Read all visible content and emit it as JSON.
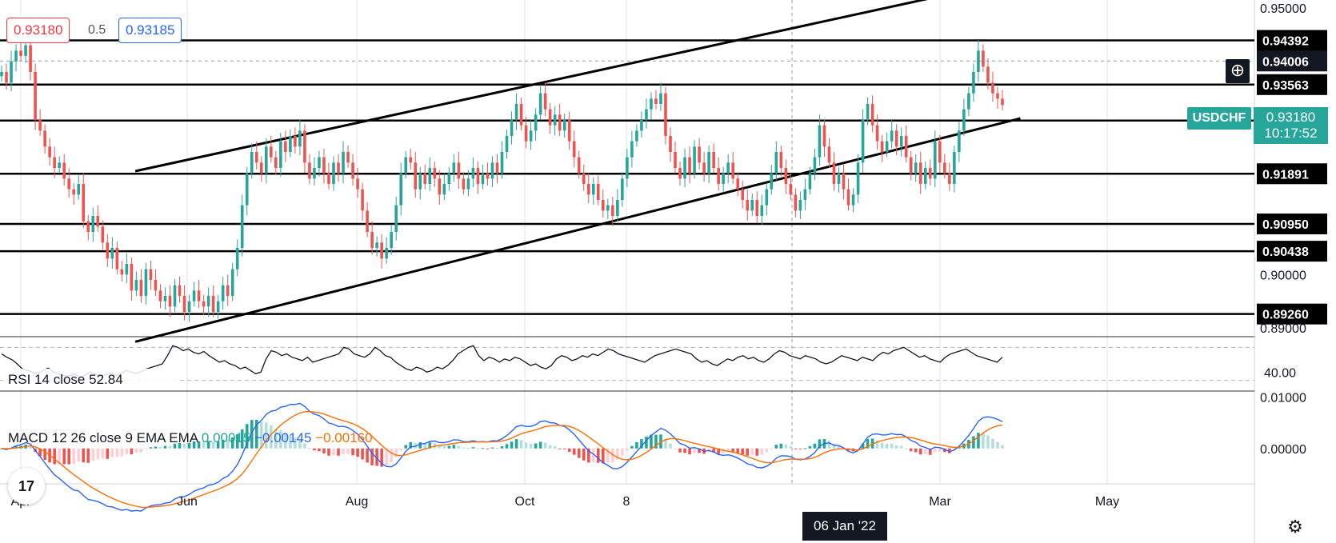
{
  "header": {
    "sell_price": "0.93180",
    "spread": "0.5",
    "buy_price": "0.93185"
  },
  "chart_data": {
    "type": "candlestick",
    "symbol": "USDCHF",
    "price_axis": {
      "ticks": [
        "0.95000",
        "0.90000",
        "0.89000"
      ],
      "range": [
        0.8885,
        0.9515
      ],
      "last_price": "0.93180",
      "countdown": "10:17:52",
      "crosshair_price": "0.94006"
    },
    "horizontal_levels": [
      "0.94392",
      "0.93563",
      "0.92889",
      "0.91891",
      "0.90950",
      "0.90438",
      "0.89260"
    ],
    "time_axis": {
      "labels": [
        "Apr",
        "Jun",
        "Aug",
        "Oct",
        "8",
        "Mar",
        "May"
      ],
      "crosshair_date": "06 Jan '22"
    },
    "trend_channel": {
      "upper": {
        "from": [
          "2021-05-12",
          0.9194
        ],
        "to": [
          "2022-03-25",
          0.9555
        ]
      },
      "lower": {
        "from": [
          "2021-05-12",
          0.8874
        ],
        "to": [
          "2022-03-25",
          0.9293
        ]
      }
    },
    "candles_close": [
      0.938,
      0.936,
      0.94,
      0.942,
      0.941,
      0.943,
      0.938,
      0.929,
      0.927,
      0.924,
      0.922,
      0.92,
      0.921,
      0.918,
      0.916,
      0.915,
      0.917,
      0.91,
      0.908,
      0.911,
      0.909,
      0.906,
      0.903,
      0.905,
      0.901,
      0.9,
      0.902,
      0.897,
      0.899,
      0.896,
      0.901,
      0.899,
      0.897,
      0.895,
      0.896,
      0.894,
      0.898,
      0.896,
      0.893,
      0.895,
      0.897,
      0.895,
      0.894,
      0.896,
      0.893,
      0.895,
      0.898,
      0.896,
      0.901,
      0.905,
      0.913,
      0.919,
      0.923,
      0.921,
      0.919,
      0.924,
      0.922,
      0.92,
      0.925,
      0.923,
      0.926,
      0.924,
      0.927,
      0.921,
      0.918,
      0.92,
      0.922,
      0.919,
      0.917,
      0.921,
      0.919,
      0.923,
      0.921,
      0.918,
      0.916,
      0.912,
      0.908,
      0.905,
      0.906,
      0.903,
      0.905,
      0.908,
      0.913,
      0.919,
      0.922,
      0.921,
      0.916,
      0.919,
      0.917,
      0.92,
      0.918,
      0.915,
      0.917,
      0.919,
      0.921,
      0.918,
      0.916,
      0.918,
      0.92,
      0.917,
      0.919,
      0.918,
      0.921,
      0.919,
      0.923,
      0.926,
      0.929,
      0.932,
      0.928,
      0.925,
      0.927,
      0.93,
      0.934,
      0.931,
      0.928,
      0.93,
      0.927,
      0.929,
      0.925,
      0.922,
      0.919,
      0.917,
      0.915,
      0.917,
      0.914,
      0.912,
      0.913,
      0.911,
      0.914,
      0.918,
      0.922,
      0.925,
      0.927,
      0.929,
      0.931,
      0.933,
      0.932,
      0.934,
      0.926,
      0.923,
      0.92,
      0.918,
      0.922,
      0.919,
      0.924,
      0.921,
      0.919,
      0.923,
      0.92,
      0.917,
      0.919,
      0.921,
      0.918,
      0.916,
      0.914,
      0.912,
      0.914,
      0.911,
      0.913,
      0.916,
      0.919,
      0.923,
      0.92,
      0.917,
      0.915,
      0.912,
      0.914,
      0.916,
      0.919,
      0.922,
      0.928,
      0.924,
      0.921,
      0.917,
      0.919,
      0.916,
      0.913,
      0.915,
      0.921,
      0.929,
      0.932,
      0.928,
      0.925,
      0.923,
      0.925,
      0.927,
      0.924,
      0.926,
      0.922,
      0.919,
      0.921,
      0.917,
      0.92,
      0.918,
      0.925,
      0.921,
      0.919,
      0.917,
      0.923,
      0.927,
      0.931,
      0.934,
      0.938,
      0.942,
      0.939,
      0.936,
      0.934,
      0.933,
      0.9318
    ],
    "rsi": {
      "label": "RSI 14 close",
      "value": "52.84",
      "tick": "40.00",
      "values": [
        62,
        58,
        55,
        50,
        44,
        42,
        40,
        38,
        42,
        45,
        40,
        38,
        36,
        35,
        38,
        34,
        36,
        40,
        38,
        35,
        37,
        39,
        36,
        38,
        42,
        40,
        38,
        41,
        44,
        46,
        48,
        50,
        60,
        72,
        70,
        66,
        68,
        64,
        62,
        65,
        60,
        56,
        52,
        54,
        50,
        48,
        44,
        46,
        42,
        38,
        40,
        56,
        66,
        64,
        60,
        62,
        58,
        56,
        54,
        58,
        52,
        54,
        56,
        58,
        60,
        62,
        70,
        68,
        62,
        60,
        58,
        62,
        70,
        66,
        60,
        58,
        52,
        48,
        44,
        42,
        46,
        44,
        40,
        42,
        46,
        44,
        48,
        54,
        62,
        66,
        70,
        72,
        60,
        54,
        58,
        56,
        52,
        56,
        54,
        58,
        56,
        52,
        48,
        50,
        46,
        44,
        48,
        56,
        60,
        58,
        54,
        56,
        60,
        58,
        62,
        60,
        64,
        68,
        66,
        62,
        60,
        58,
        56,
        54,
        52,
        56,
        60,
        62,
        64,
        66,
        68,
        66,
        64,
        62,
        56,
        52,
        54,
        50,
        48,
        52,
        56,
        54,
        58,
        60,
        56,
        58,
        54,
        52,
        56,
        62,
        66,
        64,
        60,
        58,
        56,
        60,
        58,
        56,
        52,
        50,
        52,
        56,
        60,
        58,
        56,
        54,
        58,
        56,
        54,
        60,
        64,
        62,
        66,
        68,
        70,
        66,
        62,
        58,
        60,
        56,
        54,
        52,
        58,
        62,
        64,
        66,
        68,
        64,
        60,
        58,
        56,
        54,
        52,
        58
      ],
      "range": [
        20,
        80
      ]
    },
    "macd": {
      "label": "MACD 12 26 close 9 EMA EMA",
      "histogram_value": "0.00015",
      "macd_value": "−0.00145",
      "signal_value": "−0.00160",
      "tick_top": "0.01000",
      "tick_zero": "0.00000",
      "range": [
        -0.0045,
        0.0075
      ]
    }
  },
  "colors": {
    "up": "#26a69a",
    "down": "#ef5350",
    "macd_line": "#2962ff",
    "signal_line": "#ff6d00",
    "hist_up": "#26a69a",
    "hist_up_weak": "#b2dfdb",
    "hist_down": "#ef5350",
    "hist_down_weak": "#ffcdd2"
  },
  "icons": {
    "logo": "tradingview-logo-icon",
    "settings": "gear-icon",
    "add": "plus-circle-icon"
  },
  "logo_text": "17",
  "add_glyph": "⊕",
  "settings_glyph": "⚙"
}
